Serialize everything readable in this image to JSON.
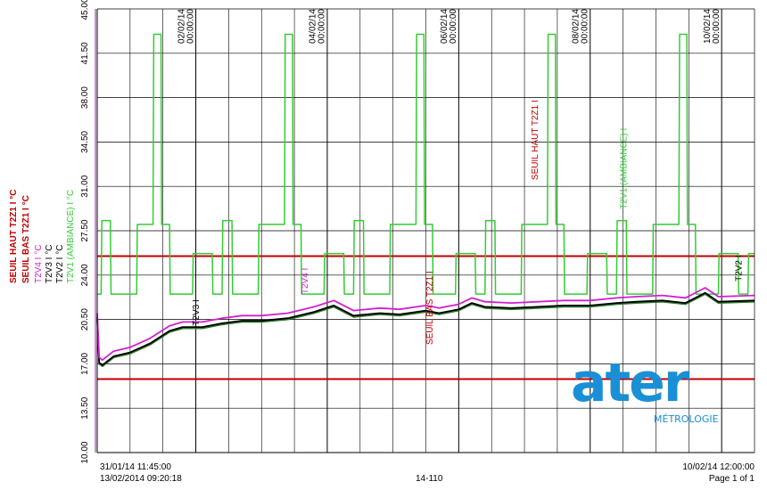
{
  "chart_data": {
    "type": "line",
    "y_tick_labels": [
      "10.00",
      "13.50",
      "17.00",
      "20.50",
      "24.00",
      "27.50",
      "31.00",
      "34.50",
      "38.00",
      "41.50",
      "45.00"
    ],
    "y_ticks": [
      10.0,
      13.5,
      17.0,
      20.5,
      24.0,
      27.5,
      31.0,
      34.5,
      38.0,
      41.5,
      45.0
    ],
    "ylim": [
      10.0,
      45.0
    ],
    "x_range_days": [
      0,
      9.0104
    ],
    "date_labels": [
      {
        "x": 1.51,
        "date": "02/02/14",
        "time": "00:00:00"
      },
      {
        "x": 3.51,
        "date": "04/02/14",
        "time": "00:00:00"
      },
      {
        "x": 5.51,
        "date": "06/02/14",
        "time": "00:00:00"
      },
      {
        "x": 7.51,
        "date": "08/02/14",
        "time": "00:00:00"
      },
      {
        "x": 9.51,
        "date": "10/02/14",
        "time": "00:00:00"
      }
    ],
    "grid": true,
    "thresholds": [
      {
        "name": "SEUIL HAUT T2Z1 I",
        "value": 25.5,
        "color": "#c00000",
        "label_x": 6.7,
        "label_y": 31.5
      },
      {
        "name": "SEUIL BAS T2Z1 I",
        "value": 15.8,
        "color": "#c00000",
        "label_x": 5.1,
        "label_y": 18.5
      }
    ],
    "series": [
      {
        "name": "T2V1 (AMBIANCE) I",
        "unit": "°C",
        "color": "#33cc33",
        "points": [
          [
            0,
            22.5
          ],
          [
            0.06,
            22.5
          ],
          [
            0.07,
            28.3
          ],
          [
            0.2,
            28.3
          ],
          [
            0.21,
            22.5
          ],
          [
            0.6,
            22.5
          ],
          [
            0.61,
            28.0
          ],
          [
            0.85,
            28.0
          ],
          [
            0.86,
            43.0
          ],
          [
            0.97,
            43.0
          ],
          [
            0.98,
            28.0
          ],
          [
            1.1,
            28.0
          ],
          [
            1.11,
            22.5
          ],
          [
            1.45,
            22.5
          ],
          [
            1.46,
            25.7
          ],
          [
            1.75,
            25.7
          ],
          [
            1.76,
            22.5
          ],
          [
            1.9,
            22.5
          ],
          [
            1.91,
            28.3
          ],
          [
            2.05,
            28.3
          ],
          [
            2.06,
            22.5
          ],
          [
            2.45,
            22.5
          ],
          [
            2.46,
            28.0
          ],
          [
            2.85,
            28.0
          ],
          [
            2.86,
            43.0
          ],
          [
            2.97,
            43.0
          ],
          [
            2.98,
            28.0
          ],
          [
            3.1,
            28.0
          ],
          [
            3.11,
            22.5
          ],
          [
            3.45,
            22.5
          ],
          [
            3.46,
            25.7
          ],
          [
            3.75,
            25.7
          ],
          [
            3.76,
            22.5
          ],
          [
            3.9,
            22.5
          ],
          [
            3.91,
            28.3
          ],
          [
            4.05,
            28.3
          ],
          [
            4.06,
            22.5
          ],
          [
            4.45,
            22.5
          ],
          [
            4.46,
            28.0
          ],
          [
            4.85,
            28.0
          ],
          [
            4.86,
            43.0
          ],
          [
            4.97,
            43.0
          ],
          [
            4.98,
            28.0
          ],
          [
            5.1,
            28.0
          ],
          [
            5.11,
            22.5
          ],
          [
            5.45,
            22.5
          ],
          [
            5.46,
            25.7
          ],
          [
            5.75,
            25.7
          ],
          [
            5.76,
            22.5
          ],
          [
            5.9,
            22.5
          ],
          [
            5.91,
            28.3
          ],
          [
            6.05,
            28.3
          ],
          [
            6.06,
            22.5
          ],
          [
            6.45,
            22.5
          ],
          [
            6.46,
            28.0
          ],
          [
            6.85,
            28.0
          ],
          [
            6.86,
            43.0
          ],
          [
            6.97,
            43.0
          ],
          [
            6.98,
            28.0
          ],
          [
            7.1,
            28.0
          ],
          [
            7.11,
            22.5
          ],
          [
            7.45,
            22.5
          ],
          [
            7.46,
            25.7
          ],
          [
            7.75,
            25.7
          ],
          [
            7.76,
            22.5
          ],
          [
            7.9,
            22.5
          ],
          [
            7.91,
            28.3
          ],
          [
            8.05,
            28.3
          ],
          [
            8.06,
            22.5
          ],
          [
            8.45,
            22.5
          ],
          [
            8.46,
            28.0
          ],
          [
            8.85,
            28.0
          ],
          [
            8.86,
            43.0
          ],
          [
            8.97,
            43.0
          ],
          [
            8.98,
            28.0
          ],
          [
            9.1,
            28.0
          ],
          [
            9.11,
            22.5
          ],
          [
            9.45,
            22.5
          ],
          [
            9.46,
            25.7
          ],
          [
            9.75,
            25.7
          ],
          [
            9.76,
            22.5
          ],
          [
            9.9,
            22.5
          ],
          [
            9.91,
            25.7
          ],
          [
            10.0,
            25.7
          ]
        ]
      },
      {
        "name": "T2V4 I",
        "unit": "°C",
        "color": "#d020d0",
        "points": [
          [
            0,
            21.0
          ],
          [
            0.03,
            17.5
          ],
          [
            0.08,
            17.3
          ],
          [
            0.25,
            18.0
          ],
          [
            0.5,
            18.3
          ],
          [
            0.8,
            19.0
          ],
          [
            1.1,
            20.0
          ],
          [
            1.3,
            20.3
          ],
          [
            1.6,
            20.3
          ],
          [
            1.9,
            20.6
          ],
          [
            2.2,
            20.8
          ],
          [
            2.5,
            20.8
          ],
          [
            2.9,
            21.0
          ],
          [
            3.3,
            21.5
          ],
          [
            3.6,
            22.0
          ],
          [
            3.9,
            21.2
          ],
          [
            4.3,
            21.4
          ],
          [
            4.6,
            21.3
          ],
          [
            5.0,
            21.6
          ],
          [
            5.2,
            21.4
          ],
          [
            5.5,
            21.7
          ],
          [
            5.7,
            22.2
          ],
          [
            5.9,
            21.9
          ],
          [
            6.3,
            21.8
          ],
          [
            6.7,
            21.9
          ],
          [
            7.1,
            22.0
          ],
          [
            7.5,
            22.0
          ],
          [
            7.9,
            22.2
          ],
          [
            8.2,
            22.3
          ],
          [
            8.6,
            22.4
          ],
          [
            8.95,
            22.2
          ],
          [
            9.25,
            23.0
          ],
          [
            9.45,
            22.3
          ],
          [
            10.0,
            22.4
          ]
        ]
      },
      {
        "name": "T2V3 I",
        "unit": "°C",
        "color": "#000000",
        "points": [
          [
            0,
            20.7
          ],
          [
            0.03,
            17.1
          ],
          [
            0.08,
            16.9
          ],
          [
            0.25,
            17.6
          ],
          [
            0.5,
            17.9
          ],
          [
            0.8,
            18.6
          ],
          [
            1.1,
            19.6
          ],
          [
            1.3,
            19.9
          ],
          [
            1.6,
            19.9
          ],
          [
            1.9,
            20.2
          ],
          [
            2.2,
            20.4
          ],
          [
            2.5,
            20.4
          ],
          [
            2.9,
            20.6
          ],
          [
            3.3,
            21.1
          ],
          [
            3.6,
            21.6
          ],
          [
            3.9,
            20.8
          ],
          [
            4.3,
            21.0
          ],
          [
            4.6,
            20.9
          ],
          [
            5.0,
            21.2
          ],
          [
            5.2,
            21.0
          ],
          [
            5.5,
            21.3
          ],
          [
            5.7,
            21.8
          ],
          [
            5.9,
            21.5
          ],
          [
            6.3,
            21.4
          ],
          [
            6.7,
            21.5
          ],
          [
            7.1,
            21.6
          ],
          [
            7.5,
            21.6
          ],
          [
            7.9,
            21.8
          ],
          [
            8.2,
            21.9
          ],
          [
            8.6,
            22.0
          ],
          [
            8.95,
            21.8
          ],
          [
            9.25,
            22.6
          ],
          [
            9.45,
            21.9
          ],
          [
            10.0,
            22.0
          ]
        ]
      },
      {
        "name": "T2V2 I",
        "unit": "°C",
        "color": "#2e7a2e",
        "points": [
          [
            0,
            20.5
          ],
          [
            0.03,
            17.0
          ],
          [
            0.08,
            16.8
          ],
          [
            0.25,
            17.5
          ],
          [
            0.5,
            17.8
          ],
          [
            0.8,
            18.5
          ],
          [
            1.1,
            19.5
          ],
          [
            1.3,
            19.8
          ],
          [
            1.6,
            19.8
          ],
          [
            1.9,
            20.1
          ],
          [
            2.2,
            20.3
          ],
          [
            2.5,
            20.3
          ],
          [
            2.9,
            20.5
          ],
          [
            3.3,
            21.0
          ],
          [
            3.6,
            21.5
          ],
          [
            3.9,
            20.7
          ],
          [
            4.3,
            20.9
          ],
          [
            4.6,
            20.8
          ],
          [
            5.0,
            21.1
          ],
          [
            5.2,
            20.9
          ],
          [
            5.5,
            21.2
          ],
          [
            5.7,
            21.7
          ],
          [
            5.9,
            21.4
          ],
          [
            6.3,
            21.3
          ],
          [
            6.7,
            21.4
          ],
          [
            7.1,
            21.5
          ],
          [
            7.5,
            21.5
          ],
          [
            7.9,
            21.7
          ],
          [
            8.2,
            21.8
          ],
          [
            8.6,
            21.9
          ],
          [
            8.95,
            21.7
          ],
          [
            9.25,
            22.5
          ],
          [
            9.45,
            21.8
          ],
          [
            10.0,
            21.9
          ]
        ]
      }
    ],
    "curve_labels": [
      {
        "text": "T2V3 I",
        "x": 1.55,
        "y": 20.0,
        "color": "#000000"
      },
      {
        "text": "T2V4 I",
        "x": 3.2,
        "y": 22.5,
        "color": "#d020d0"
      },
      {
        "text": "T2V1 (AMBIANCE) I",
        "x": 8.05,
        "y": 29.2,
        "color": "#33cc33"
      },
      {
        "text": "T2V2 I",
        "x": 9.8,
        "y": 23.5,
        "color": "#000000"
      }
    ]
  },
  "legend": [
    {
      "label": "SEUIL HAUT T2Z1 I",
      "unit": "°C",
      "color": "#c00000"
    },
    {
      "label": "SEUIL BAS T2Z1 I",
      "unit": "°C",
      "color": "#c00000"
    },
    {
      "label": "T2V4 I",
      "unit": "°C",
      "color": "#d020d0"
    },
    {
      "label": "T2V3 I",
      "unit": "°C",
      "color": "#000000"
    },
    {
      "label": "T2V2 I",
      "unit": "°C",
      "color": "#000000"
    },
    {
      "label": "T2V1 (AMBIANCE) I",
      "unit": "°C",
      "color": "#33cc33"
    }
  ],
  "footer": {
    "start": "31/01/14 11:45:00",
    "printed": "13/02/2014  09:20:18",
    "doc_id": "14-110",
    "end": "10/02/14 12:00:00",
    "page": "Page 1 of 1"
  },
  "logo": {
    "word": "ater",
    "subtitle": "MÉTROLOGIE",
    "color": "#1a8fd6"
  }
}
